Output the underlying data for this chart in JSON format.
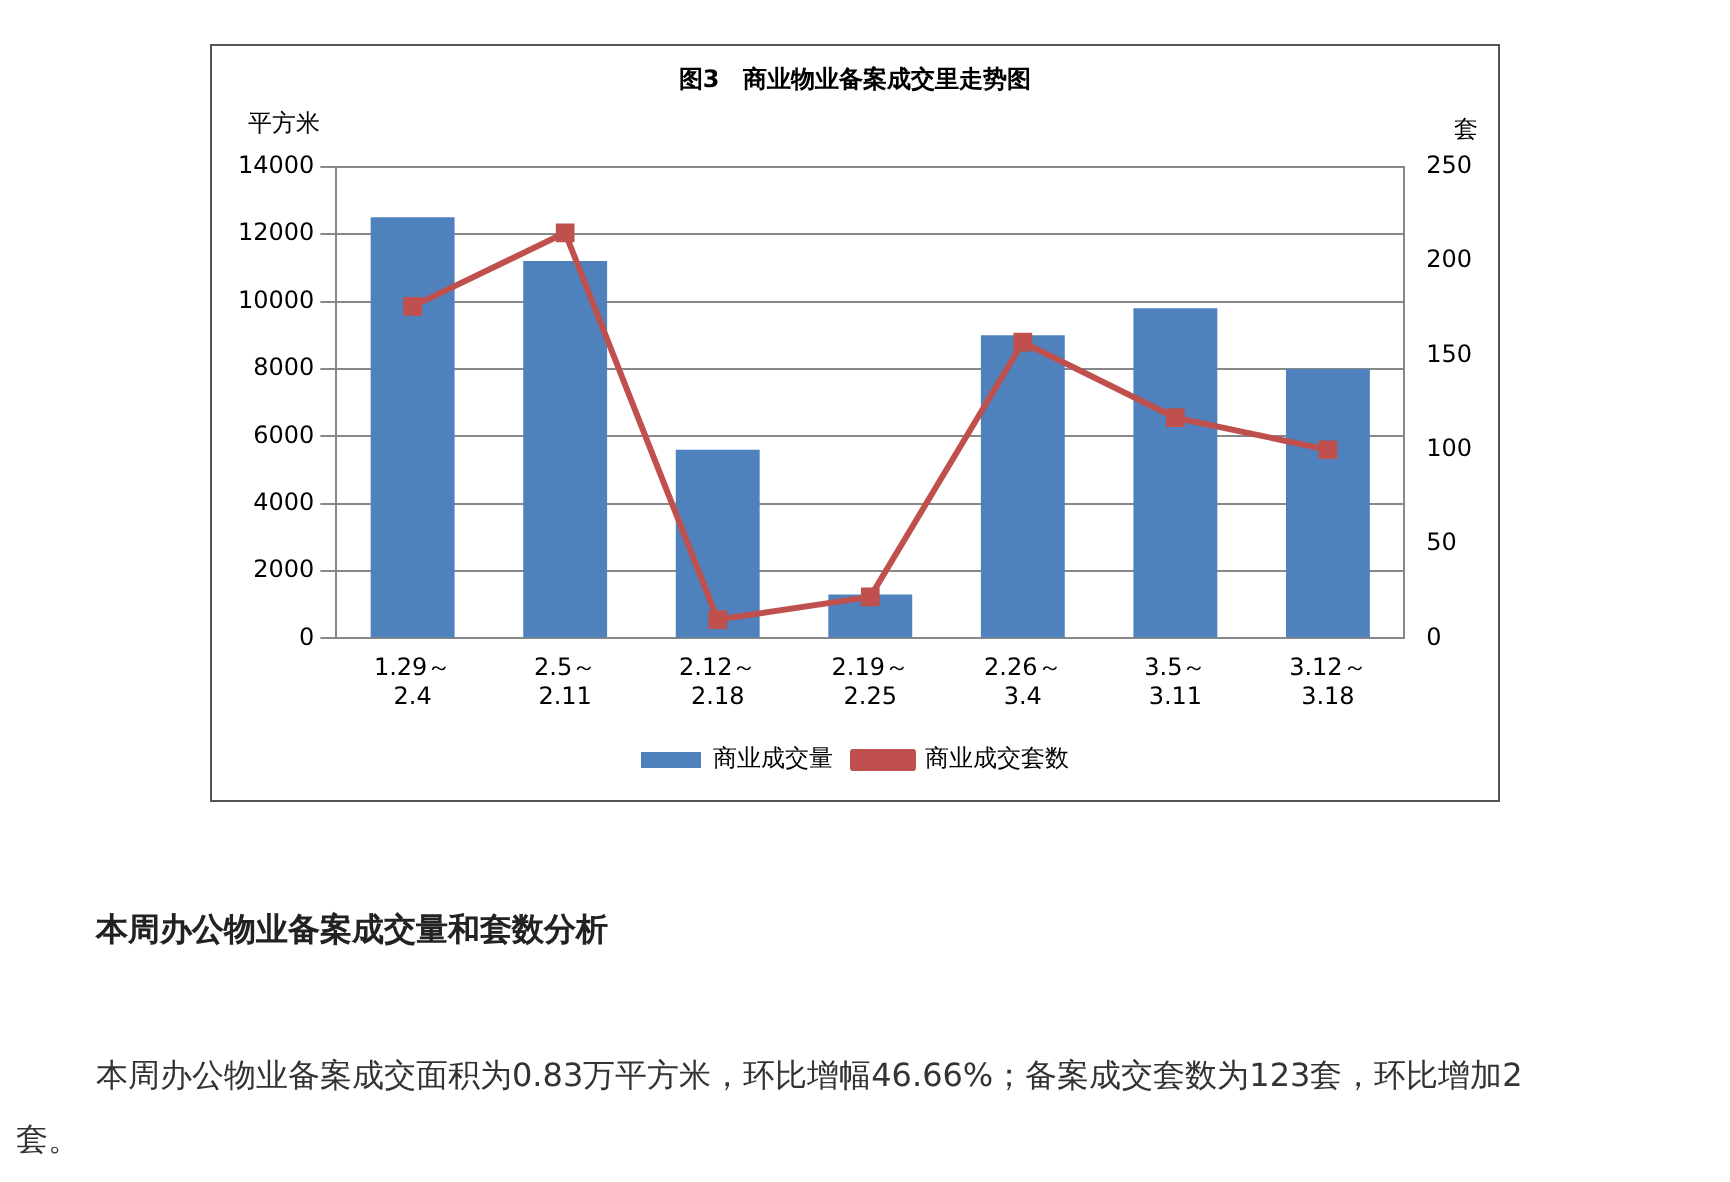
{
  "chart_data": {
    "type": "bar",
    "title": "图3　商业物业备案成交里走势图",
    "ylabel": "平方米",
    "y2label": "套",
    "categories": [
      "1.29～\n2.4",
      "2.5～\n2.11",
      "2.12～\n2.18",
      "2.19～\n2.25",
      "2.26～\n3.4",
      "3.5～\n3.11",
      "3.12～\n3.18"
    ],
    "series": [
      {
        "name": "商业成交量",
        "color": "#4f81bd",
        "values": [
          12500,
          11200,
          5600,
          1300,
          9000,
          9800,
          8000
        ]
      },
      {
        "name": "商业成交套数",
        "type": "line",
        "axis": "y2",
        "color": "#c0504d",
        "values": [
          176,
          215,
          10,
          22,
          157,
          117,
          100
        ]
      }
    ],
    "ylim": [
      0,
      14000
    ],
    "yticks": [
      0,
      2000,
      4000,
      6000,
      8000,
      10000,
      12000,
      14000
    ],
    "y2lim": [
      0,
      250
    ],
    "y2ticks": [
      0,
      50,
      100,
      150,
      200,
      250
    ],
    "grid": "y",
    "legend": "bottom",
    "marker": "square",
    "annotations": [
      "本周办公物业备案成交量和套数分析",
      "本周办公物业备案成交面积为0.83万平方米，环比增幅46.66%；备案成交套数为123套，环比增加2套。"
    ]
  }
}
